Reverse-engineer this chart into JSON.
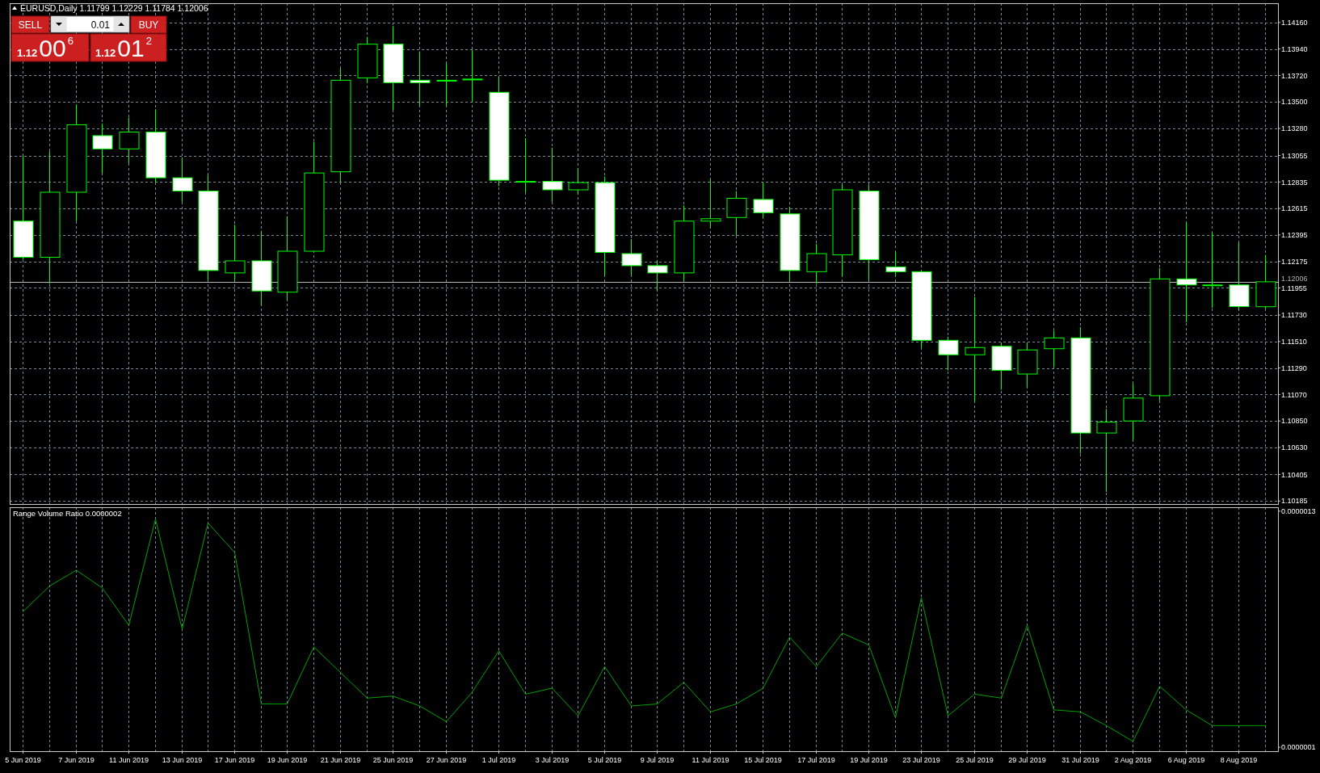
{
  "chart_data": [
    {
      "type": "candlestick",
      "title": "EURUSD,Daily 1.11799 1.12229 1.11784 1.12006",
      "categories": [
        null,
        null,
        null,
        null,
        null,
        null,
        null,
        null,
        null,
        null,
        null,
        null,
        null,
        null,
        null,
        null,
        null,
        null,
        null,
        null,
        null,
        null,
        null,
        null,
        null,
        null,
        null,
        null,
        null,
        null,
        null,
        null,
        null,
        null,
        null,
        null,
        null,
        null,
        null,
        null,
        null,
        null,
        null,
        null,
        null,
        null,
        null,
        null
      ],
      "ohlc": [
        [
          1.1251,
          1.1305,
          1.1219,
          1.1221
        ],
        [
          1.1221,
          1.1309,
          1.1199,
          1.1275
        ],
        [
          1.1275,
          1.1348,
          1.1251,
          1.1331
        ],
        [
          1.1322,
          1.1332,
          1.1291,
          1.1311
        ],
        [
          1.1311,
          1.1337,
          1.1299,
          1.1325
        ],
        [
          1.1325,
          1.1344,
          1.1283,
          1.1287
        ],
        [
          1.1287,
          1.1304,
          1.1267,
          1.1276
        ],
        [
          1.1276,
          1.1289,
          1.1202,
          1.121
        ],
        [
          1.1208,
          1.1248,
          1.1202,
          1.1218
        ],
        [
          1.1218,
          1.1243,
          1.1181,
          1.1193
        ],
        [
          1.1192,
          1.1255,
          1.1186,
          1.1226
        ],
        [
          1.1226,
          1.1317,
          1.1225,
          1.1291
        ],
        [
          1.1292,
          1.1378,
          1.1283,
          1.1368
        ],
        [
          1.137,
          1.1404,
          1.1366,
          1.1398
        ],
        [
          1.1398,
          1.1413,
          1.1343,
          1.1366
        ],
        [
          1.1368,
          1.1392,
          1.1347,
          1.1366
        ],
        [
          1.1368,
          1.1382,
          1.1347,
          1.1368
        ],
        [
          1.1369,
          1.1393,
          1.135,
          1.1369
        ],
        [
          1.1358,
          1.1371,
          1.128,
          1.1285
        ],
        [
          1.1284,
          1.132,
          1.1275,
          1.1284
        ],
        [
          1.1284,
          1.1312,
          1.1267,
          1.1277
        ],
        [
          1.1277,
          1.1295,
          1.1273,
          1.1283
        ],
        [
          1.1283,
          1.1288,
          1.1206,
          1.1225
        ],
        [
          1.1224,
          1.1236,
          1.1206,
          1.1214
        ],
        [
          1.1214,
          1.1218,
          1.1193,
          1.1208
        ],
        [
          1.1208,
          1.1264,
          1.1202,
          1.1251
        ],
        [
          1.1251,
          1.1286,
          1.1245,
          1.1253
        ],
        [
          1.1254,
          1.1276,
          1.1239,
          1.127
        ],
        [
          1.1269,
          1.1283,
          1.1254,
          1.1258
        ],
        [
          1.1257,
          1.1263,
          1.1201,
          1.121
        ],
        [
          1.1209,
          1.1232,
          1.1199,
          1.1224
        ],
        [
          1.1223,
          1.1281,
          1.1205,
          1.1277
        ],
        [
          1.1276,
          1.1281,
          1.1202,
          1.1219
        ],
        [
          1.1213,
          1.1225,
          1.1206,
          1.1209
        ],
        [
          1.1209,
          1.1209,
          1.1146,
          1.1152
        ],
        [
          1.1152,
          1.1155,
          1.1127,
          1.114
        ],
        [
          1.114,
          1.1188,
          1.1101,
          1.1146
        ],
        [
          1.1147,
          1.115,
          1.1111,
          1.1127
        ],
        [
          1.1124,
          1.115,
          1.1113,
          1.1144
        ],
        [
          1.1145,
          1.116,
          1.113,
          1.1154
        ],
        [
          1.1154,
          1.1163,
          1.1058,
          1.1075
        ],
        [
          1.1075,
          1.1095,
          1.1026,
          1.1084
        ],
        [
          1.1085,
          1.1116,
          1.1069,
          1.1104
        ],
        [
          1.1106,
          1.1212,
          1.1102,
          1.1203
        ],
        [
          1.1203,
          1.125,
          1.1167,
          1.1198
        ],
        [
          1.1198,
          1.1241,
          1.1179,
          1.1198
        ],
        [
          1.1198,
          1.1233,
          1.1177,
          1.118
        ],
        [
          1.11799,
          1.12229,
          1.11784,
          1.12006
        ]
      ],
      "color": "#00ff00",
      "colors": [
        "#ffffff",
        "#000000",
        "#000000",
        "#ffffff",
        "#000000",
        "#ffffff",
        "#ffffff",
        "#ffffff",
        "#000000",
        "#ffffff",
        "#000000",
        "#000000",
        "#000000",
        "#000000",
        "#ffffff",
        "#ffffff",
        "#000000",
        "#000000",
        "#ffffff",
        "#000000",
        "#ffffff",
        "#000000",
        "#ffffff",
        "#ffffff",
        "#ffffff",
        "#000000",
        "#000000",
        "#000000",
        "#ffffff",
        "#ffffff",
        "#000000",
        "#000000",
        "#ffffff",
        "#ffffff",
        "#ffffff",
        "#ffffff",
        "#000000",
        "#ffffff",
        "#000000",
        "#000000",
        "#ffffff",
        "#000000",
        "#000000",
        "#000000",
        "#ffffff",
        "#000000",
        "#ffffff",
        "#000000"
      ],
      "ylim": [
        1.1016,
        1.1432
      ],
      "yticks": [
        {
          "value": 1.1416,
          "label": "1.14160"
        },
        {
          "value": 1.1394,
          "label": "1.13940"
        },
        {
          "value": 1.1372,
          "label": "1.13720"
        },
        {
          "value": 1.135,
          "label": "1.13500"
        },
        {
          "value": 1.1328,
          "label": "1.13280"
        },
        1.13055,
        1.12835,
        1.12615,
        1.12395,
        1.12175,
        1.11955,
        {
          "value": 1.1173,
          "label": "1.11730"
        },
        {
          "value": 1.1151,
          "label": "1.11510"
        },
        {
          "value": 1.1129,
          "label": "1.11290"
        },
        {
          "value": 1.1107,
          "label": "1.11070"
        },
        {
          "value": 1.1085,
          "label": "1.10850"
        },
        {
          "value": 1.1063,
          "label": "1.10630"
        },
        1.10405,
        1.10185
      ],
      "grid": true,
      "tick_labels": "y",
      "ref_lines": [
        {
          "axis": "y",
          "value": 1.12006,
          "label": "1.12006",
          "color": "#b4b4b4"
        }
      ],
      "annotations": [
        "SELL",
        "0.01",
        "BUY",
        "1.1200$^{6}$",
        "1.1201$^{2}$"
      ]
    },
    {
      "type": "line",
      "title": "Range Volume Ratio 0.0000002",
      "categories": [
        "5 Jun 2019",
        null,
        "7 Jun 2019",
        null,
        "11 Jun 2019",
        null,
        "13 Jun 2019",
        null,
        "17 Jun 2019",
        null,
        "19 Jun 2019",
        null,
        "21 Jun 2019",
        null,
        "25 Jun 2019",
        null,
        "27 Jun 2019",
        null,
        "1 Jul 2019",
        null,
        "3 Jul 2019",
        null,
        "5 Jul 2019",
        null,
        "9 Jul 2019",
        null,
        "11 Jul 2019",
        null,
        "15 Jul 2019",
        null,
        "17 Jul 2019",
        null,
        "19 Jul 2019",
        null,
        "23 Jul 2019",
        null,
        "25 Jul 2019",
        null,
        "29 Jul 2019",
        null,
        "31 Jul 2019",
        null,
        "2 Aug 2019",
        null,
        "6 Aug 2019",
        null,
        "8 Aug 2019",
        null
      ],
      "values": [
        7.9e-07,
        9.2e-07,
        1e-06,
        9.1e-07,
        7.2e-07,
        1.26e-06,
        7e-07,
        1.24e-06,
        1.09e-06,
        3.2e-07,
        3.2e-07,
        6.1e-07,
        4.8e-07,
        3.5e-07,
        3.6e-07,
        3.1e-07,
        2.3e-07,
        3.8e-07,
        5.9e-07,
        3.7e-07,
        4e-07,
        2.6e-07,
        5.1e-07,
        3.1e-07,
        3.2e-07,
        4.3e-07,
        2.8e-07,
        3.2e-07,
        4e-07,
        6.6e-07,
        5.1e-07,
        6.8e-07,
        6.2e-07,
        2.5e-07,
        8.6e-07,
        2.6e-07,
        3.7e-07,
        3.5e-07,
        7.2e-07,
        2.9e-07,
        2.8e-07,
        2.1e-07,
        1.3e-07,
        4.1e-07,
        2.9e-07,
        2.1e-07,
        2.1e-07,
        2.1e-07
      ],
      "color": "#00a000",
      "ylim": [
        8e-08,
        1.32e-06
      ],
      "yticks": [
        {
          "value": 1.3e-06,
          "label": "0.0000013"
        },
        {
          "value": 1e-07,
          "label": "0.0000001"
        }
      ],
      "grid": "x"
    }
  ]
}
